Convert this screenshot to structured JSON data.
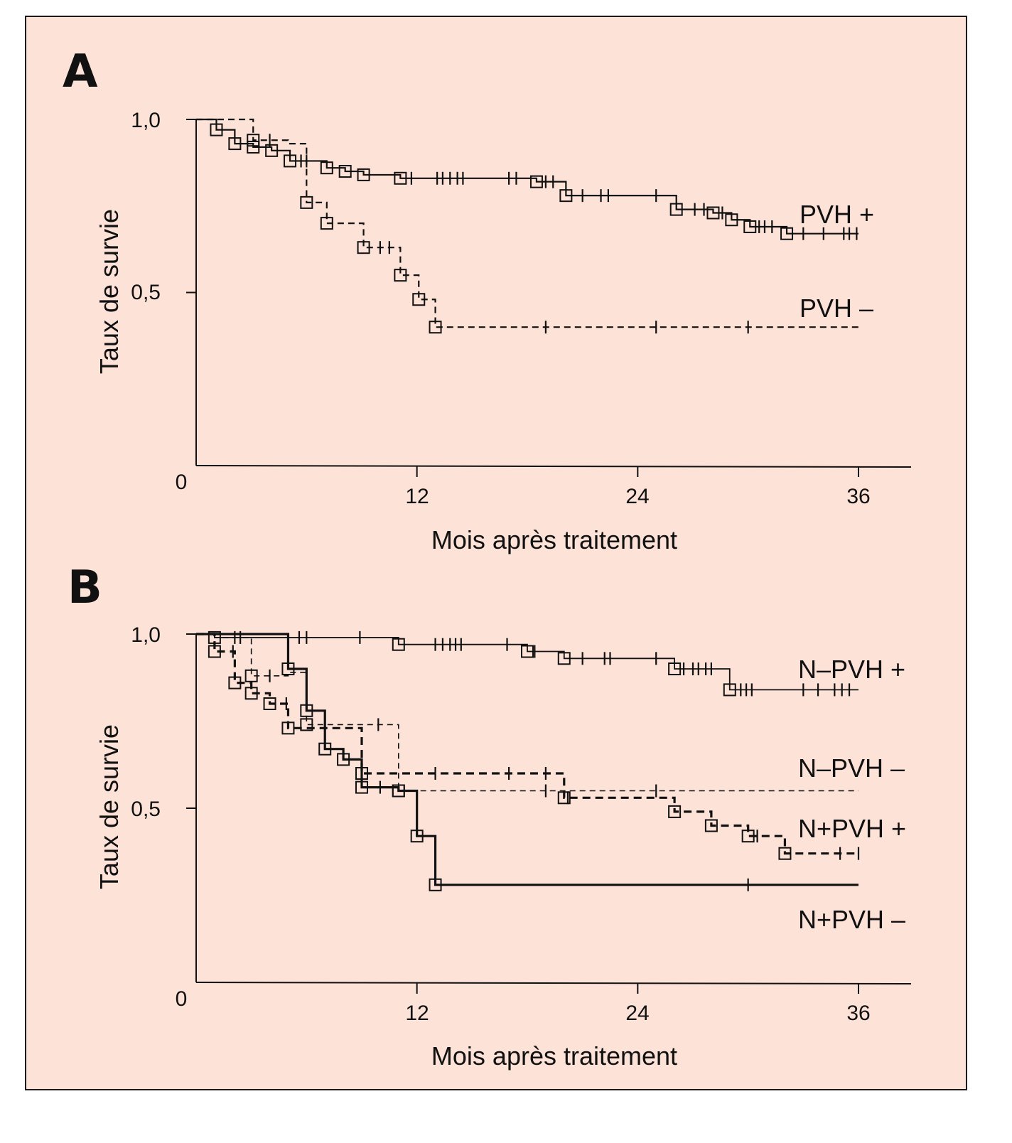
{
  "figure": {
    "background_color": "#fde2d8",
    "line_color": "#111111"
  },
  "chart_data": [
    {
      "id": "A",
      "type": "line",
      "subtype": "kaplan-meier-step",
      "panel_label": "A",
      "title": "",
      "xlabel": "Mois après traitement",
      "ylabel": "Taux de survie",
      "xlim": [
        0,
        36
      ],
      "ylim": [
        0,
        1.0
      ],
      "x_ticks": [
        12,
        24,
        36
      ],
      "x_tick_labels": [
        "12",
        "24",
        "36"
      ],
      "y_ticks": [
        0,
        0.5,
        1.0
      ],
      "y_tick_labels": [
        "0",
        "0,5",
        "1,0"
      ],
      "origin_label": "0",
      "grid": false,
      "legend": "inline-right",
      "series": [
        {
          "name": "PVH +",
          "style": "solid",
          "steps": [
            [
              0,
              1.0
            ],
            [
              1.1,
              0.97
            ],
            [
              2.1,
              0.93
            ],
            [
              3.1,
              0.92
            ],
            [
              4.1,
              0.91
            ],
            [
              5.1,
              0.88
            ],
            [
              7.1,
              0.86
            ],
            [
              8.1,
              0.85
            ],
            [
              9.1,
              0.84
            ],
            [
              11.1,
              0.83
            ],
            [
              18.5,
              0.82
            ],
            [
              20.1,
              0.78
            ],
            [
              26.1,
              0.74
            ],
            [
              28.1,
              0.73
            ],
            [
              29.1,
              0.71
            ],
            [
              30.1,
              0.69
            ],
            [
              32.1,
              0.67
            ],
            [
              36,
              0.67
            ]
          ],
          "events": [
            1.1,
            2.1,
            3.1,
            4.1,
            5.1,
            7.1,
            8.1,
            9.1,
            11.1,
            18.5,
            20.1,
            26.1,
            28.1,
            29.1,
            30.1,
            32.1
          ],
          "censored": [
            5.7,
            6.0,
            11.7,
            13.1,
            13.4,
            13.8,
            14.2,
            14.5,
            17.0,
            17.4,
            19.0,
            19.4,
            21.0,
            22.0,
            22.4,
            25.0,
            27.1,
            27.6,
            28.6,
            30.6,
            30.9,
            31.3,
            33.0,
            34.1,
            35.2,
            35.5,
            35.9
          ]
        },
        {
          "name": "PVH –",
          "style": "dashed",
          "steps": [
            [
              0,
              1.0
            ],
            [
              3.1,
              0.94
            ],
            [
              5.0,
              0.93
            ],
            [
              6.0,
              0.76
            ],
            [
              7.1,
              0.7
            ],
            [
              9.1,
              0.63
            ],
            [
              11.1,
              0.55
            ],
            [
              12.1,
              0.48
            ],
            [
              13.0,
              0.4
            ],
            [
              36,
              0.4
            ]
          ],
          "events": [
            3.1,
            6.0,
            7.1,
            9.1,
            11.1,
            12.1,
            13.0
          ],
          "censored": [
            4.0,
            10.0,
            10.5,
            19.0,
            25.0,
            30.0
          ]
        }
      ]
    },
    {
      "id": "B",
      "type": "line",
      "subtype": "kaplan-meier-step",
      "panel_label": "B",
      "title": "",
      "xlabel": "Mois après traitement",
      "ylabel": "Taux de survie",
      "xlim": [
        0,
        36
      ],
      "ylim": [
        0,
        1.0
      ],
      "x_ticks": [
        12,
        24,
        36
      ],
      "x_tick_labels": [
        "12",
        "24",
        "36"
      ],
      "y_ticks": [
        0,
        0.5,
        1.0
      ],
      "y_tick_labels": [
        "0",
        "0,5",
        "1,0"
      ],
      "origin_label": "0",
      "grid": false,
      "legend": "inline-right",
      "series": [
        {
          "name": "N–PVH +",
          "style": "solid-thin",
          "steps": [
            [
              0,
              1.0
            ],
            [
              1.0,
              0.99
            ],
            [
              11.0,
              0.97
            ],
            [
              18.0,
              0.95
            ],
            [
              20.0,
              0.93
            ],
            [
              26.0,
              0.9
            ],
            [
              29.0,
              0.84
            ],
            [
              36,
              0.84
            ]
          ],
          "events": [
            1.0,
            11.0,
            18.0,
            20.0,
            26.0,
            29.0
          ],
          "censored": [
            2.1,
            2.4,
            5.6,
            6.0,
            8.9,
            13.0,
            13.4,
            13.8,
            14.1,
            14.4,
            16.9,
            18.4,
            21.0,
            22.2,
            22.5,
            25.0,
            26.5,
            27.0,
            27.3,
            27.7,
            28.0,
            29.6,
            29.9,
            30.2,
            33.0,
            33.8,
            34.7,
            35.1,
            35.5
          ]
        },
        {
          "name": "N–PVH –",
          "style": "dashed-thin",
          "steps": [
            [
              0,
              1.0
            ],
            [
              1.0,
              0.99
            ],
            [
              3.0,
              0.88
            ],
            [
              5.0,
              0.89
            ],
            [
              6.0,
              0.74
            ],
            [
              11.0,
              0.55
            ],
            [
              36,
              0.55
            ]
          ],
          "events": [
            3.0,
            6.0,
            11.0
          ],
          "censored": [
            4.0,
            9.9,
            19.0,
            25.0
          ]
        },
        {
          "name": "N+PVH +",
          "style": "dashed-bold",
          "steps": [
            [
              0,
              1.0
            ],
            [
              1.0,
              0.95
            ],
            [
              2.1,
              0.86
            ],
            [
              3.0,
              0.83
            ],
            [
              4.0,
              0.8
            ],
            [
              5.0,
              0.73
            ],
            [
              9.0,
              0.6
            ],
            [
              20.0,
              0.53
            ],
            [
              26.0,
              0.49
            ],
            [
              28.0,
              0.45
            ],
            [
              30.0,
              0.42
            ],
            [
              32.0,
              0.37
            ],
            [
              36,
              0.37
            ]
          ],
          "events": [
            1.0,
            2.1,
            3.0,
            4.0,
            5.0,
            9.0,
            20.0,
            26.0,
            28.0,
            30.0,
            32.0
          ],
          "censored": [
            2.0,
            4.9,
            13.0,
            17.0,
            19.0,
            20.2,
            30.5,
            35.0,
            36.0
          ]
        },
        {
          "name": "N+PVH –",
          "style": "solid-bold",
          "steps": [
            [
              0,
              1.0
            ],
            [
              5.0,
              0.9
            ],
            [
              6.0,
              0.78
            ],
            [
              7.0,
              0.67
            ],
            [
              8.0,
              0.64
            ],
            [
              9.0,
              0.56
            ],
            [
              11.0,
              0.55
            ],
            [
              12.0,
              0.42
            ],
            [
              13.0,
              0.28
            ],
            [
              36,
              0.28
            ]
          ],
          "events": [
            5.0,
            6.0,
            7.0,
            8.0,
            9.0,
            11.0,
            12.0,
            13.0
          ],
          "censored": [
            10.0,
            30.0
          ]
        }
      ]
    }
  ]
}
